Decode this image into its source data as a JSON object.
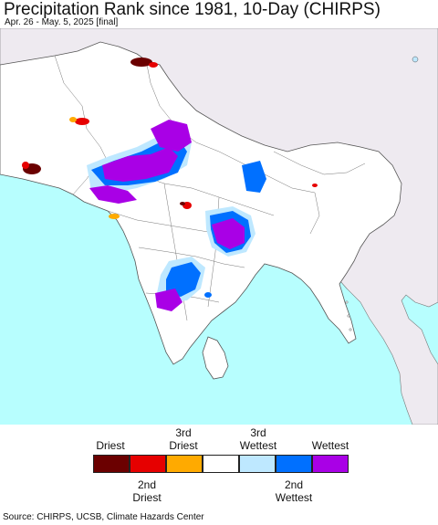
{
  "header": {
    "title": "Precipitation Rank since 1981, 10-Day (CHIRPS)",
    "subtitle": "Apr. 26 - May. 5, 2025 [final]"
  },
  "colors": {
    "ocean": "#b7fefe",
    "land_in_region": "#ffffff",
    "land_outside": "#eeeaf0",
    "borders": "#555555",
    "rank_driest": "#6b0000",
    "rank_2nd_driest": "#e60000",
    "rank_3rd_driest": "#ffaa00",
    "rank_normal": "#ffffff",
    "rank_3rd_wettest": "#bee8ff",
    "rank_2nd_wettest": "#0070ff",
    "rank_wettest": "#a900e6"
  },
  "legend": {
    "top_labels": [
      "Driest",
      "3rd Driest",
      "3rd Wettest",
      "Wettest"
    ],
    "bottom_labels": [
      "2nd Driest",
      "2nd Wettest"
    ],
    "swatches": [
      "rank_driest",
      "rank_2nd_driest",
      "rank_3rd_driest",
      "rank_normal",
      "rank_3rd_wettest",
      "rank_2nd_wettest",
      "rank_wettest"
    ]
  },
  "footer": {
    "source": "Source: CHIRPS, UCSB, Climate Hazards Center"
  }
}
